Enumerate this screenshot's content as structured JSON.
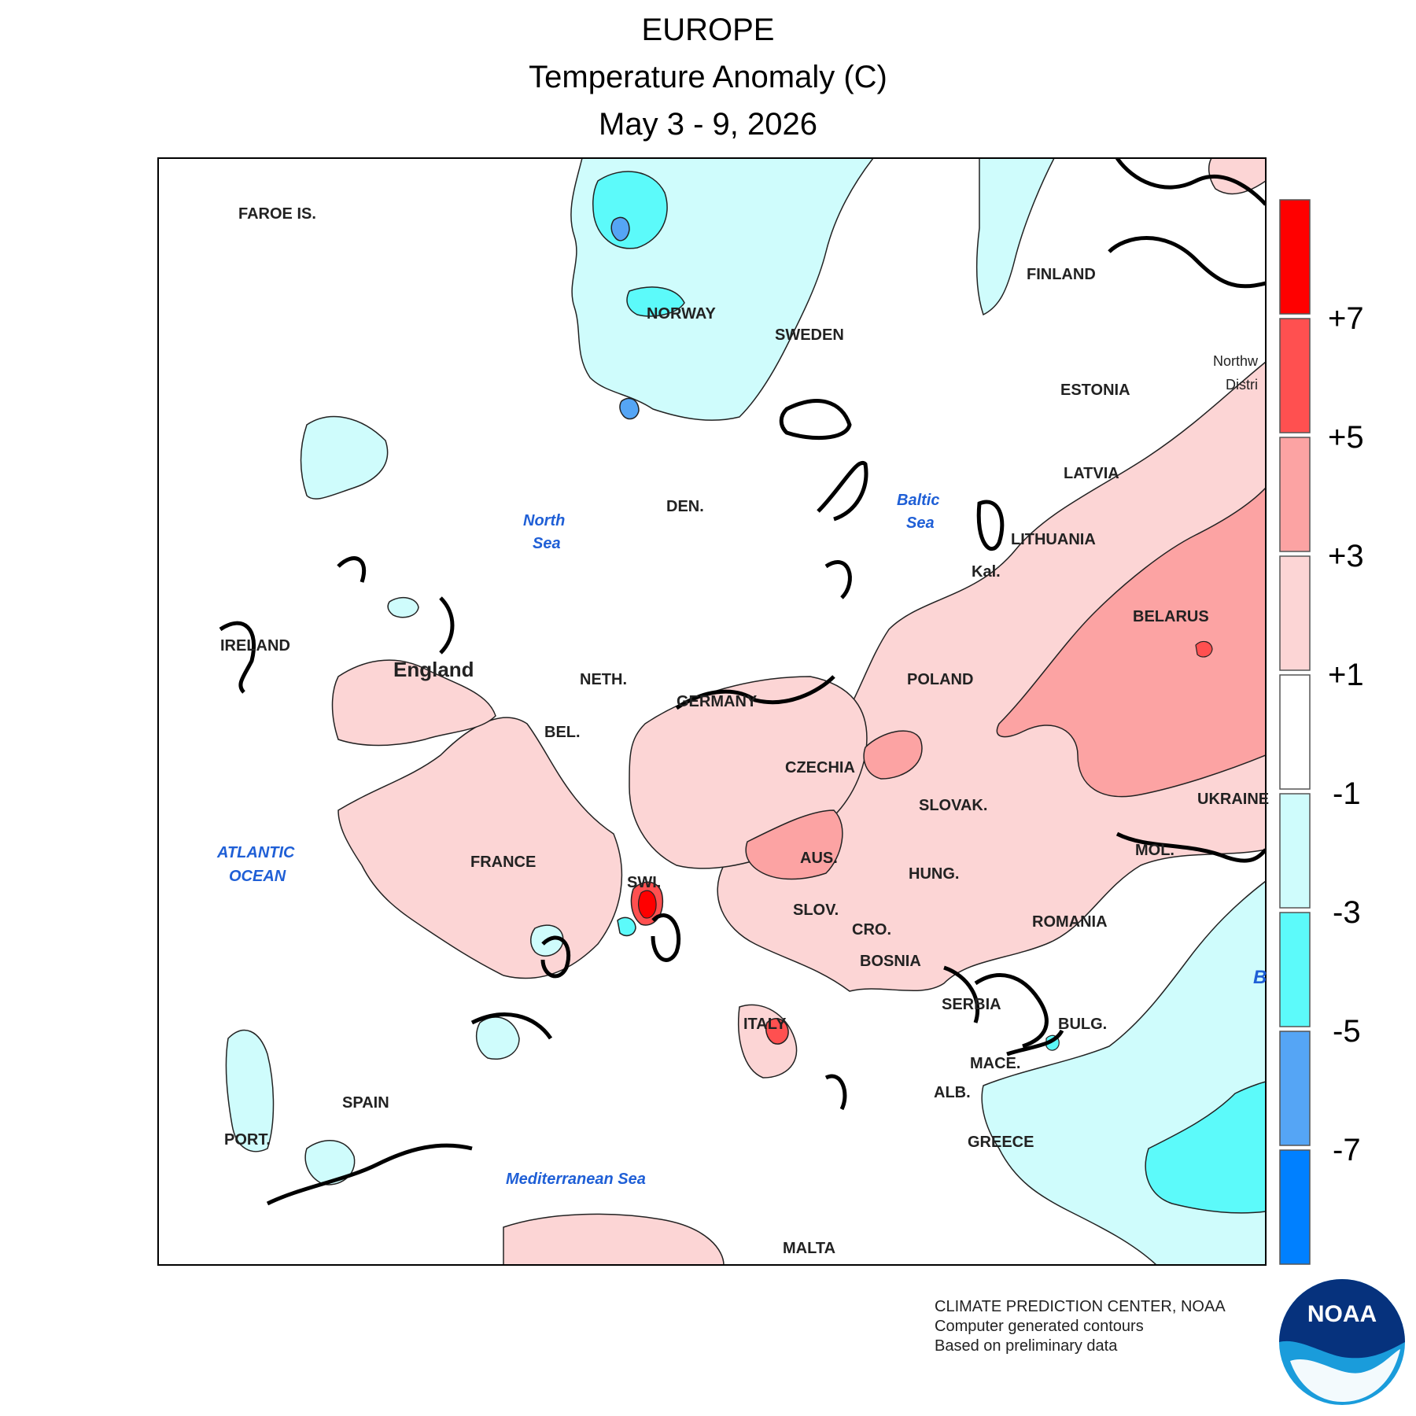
{
  "header": {
    "region": "EUROPE",
    "variable": "Temperature Anomaly (C)",
    "period": "May 3 - 9, 2026"
  },
  "legend": {
    "ticks": [
      "+7",
      "+5",
      "+3",
      "+1",
      "-1",
      "-3",
      "-5",
      "-7"
    ],
    "colors": [
      "#ff0000",
      "#ff5050",
      "#fca3a3",
      "#fcd5d5",
      "#ffffff",
      "#cffcfc",
      "#5cfafa",
      "#55a5f5",
      "#0080ff"
    ]
  },
  "labels": {
    "countries": [
      "FAROE IS.",
      "NORWAY",
      "SWEDEN",
      "FINLAND",
      "ESTONIA",
      "LATVIA",
      "LITHUANIA",
      "Kal.",
      "DEN.",
      "IRELAND",
      "England",
      "NETH.",
      "BEL.",
      "GERMANY",
      "POLAND",
      "BELARUS",
      "CZECHIA",
      "SLOVAK.",
      "UKRAINE",
      "AUS.",
      "HUNG.",
      "MOL.",
      "FRANCE",
      "SWI.",
      "SLOV.",
      "CRO.",
      "ROMANIA",
      "BOSNIA",
      "SERBIA",
      "BULG.",
      "ITALY",
      "MACE.",
      "ALB.",
      "SPAIN",
      "PORT.",
      "GREECE",
      "MALTA",
      "Northw",
      "Distri"
    ],
    "seas": [
      "North",
      "Sea",
      "Baltic",
      "Sea",
      "ATLANTIC",
      "OCEAN",
      "Mediterranean Sea",
      "B"
    ]
  },
  "credits": {
    "line1": "CLIMATE PREDICTION CENTER, NOAA",
    "line2": "Computer generated contours",
    "line3": "Based on preliminary data",
    "logo_text": "NOAA"
  }
}
